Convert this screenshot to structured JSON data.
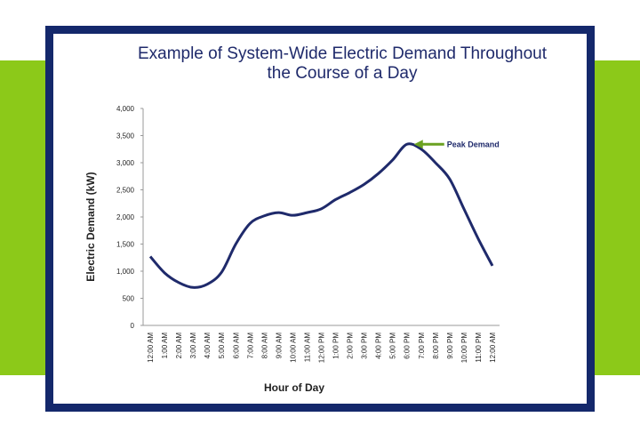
{
  "chart_data": {
    "type": "line",
    "title": "Example of System-Wide Electric Demand Throughout the Course of a Day",
    "x_label": "Hour of Day",
    "y_label": "Electric Demand (kW)",
    "categories": [
      "12:00 AM",
      "1:00 AM",
      "2:00 AM",
      "3:00 AM",
      "4:00 AM",
      "5:00 AM",
      "6:00 AM",
      "7:00 AM",
      "8:00 AM",
      "9:00 AM",
      "10:00 AM",
      "11:00 AM",
      "12:00 PM",
      "1:00 PM",
      "2:00 PM",
      "3:00 PM",
      "4:00 PM",
      "5:00 PM",
      "6:00 PM",
      "7:00 PM",
      "8:00 PM",
      "9:00 PM",
      "10:00 PM",
      "11:00 PM",
      "12:00 AM"
    ],
    "values": [
      1270,
      970,
      790,
      700,
      760,
      980,
      1500,
      1880,
      2020,
      2080,
      2030,
      2080,
      2150,
      2320,
      2450,
      2600,
      2800,
      3050,
      3340,
      3250,
      3000,
      2700,
      2150,
      1600,
      1100
    ],
    "color": "#1f2a6b",
    "ylim": [
      0,
      4000
    ],
    "yticks": [
      0,
      500,
      {
        "value": 1000,
        "label": "1,000"
      },
      {
        "value": 1500,
        "label": "1,500"
      },
      {
        "value": 2000,
        "label": "2,000"
      },
      {
        "value": 2500,
        "label": "2,500"
      },
      {
        "value": 3000,
        "label": "3,000"
      },
      {
        "value": 3500,
        "label": "3,500"
      },
      {
        "value": 4000,
        "label": "4,000"
      }
    ],
    "grid": false,
    "annotations": [
      {
        "text": "Peak Demand",
        "color": "#6aa121"
      }
    ]
  }
}
